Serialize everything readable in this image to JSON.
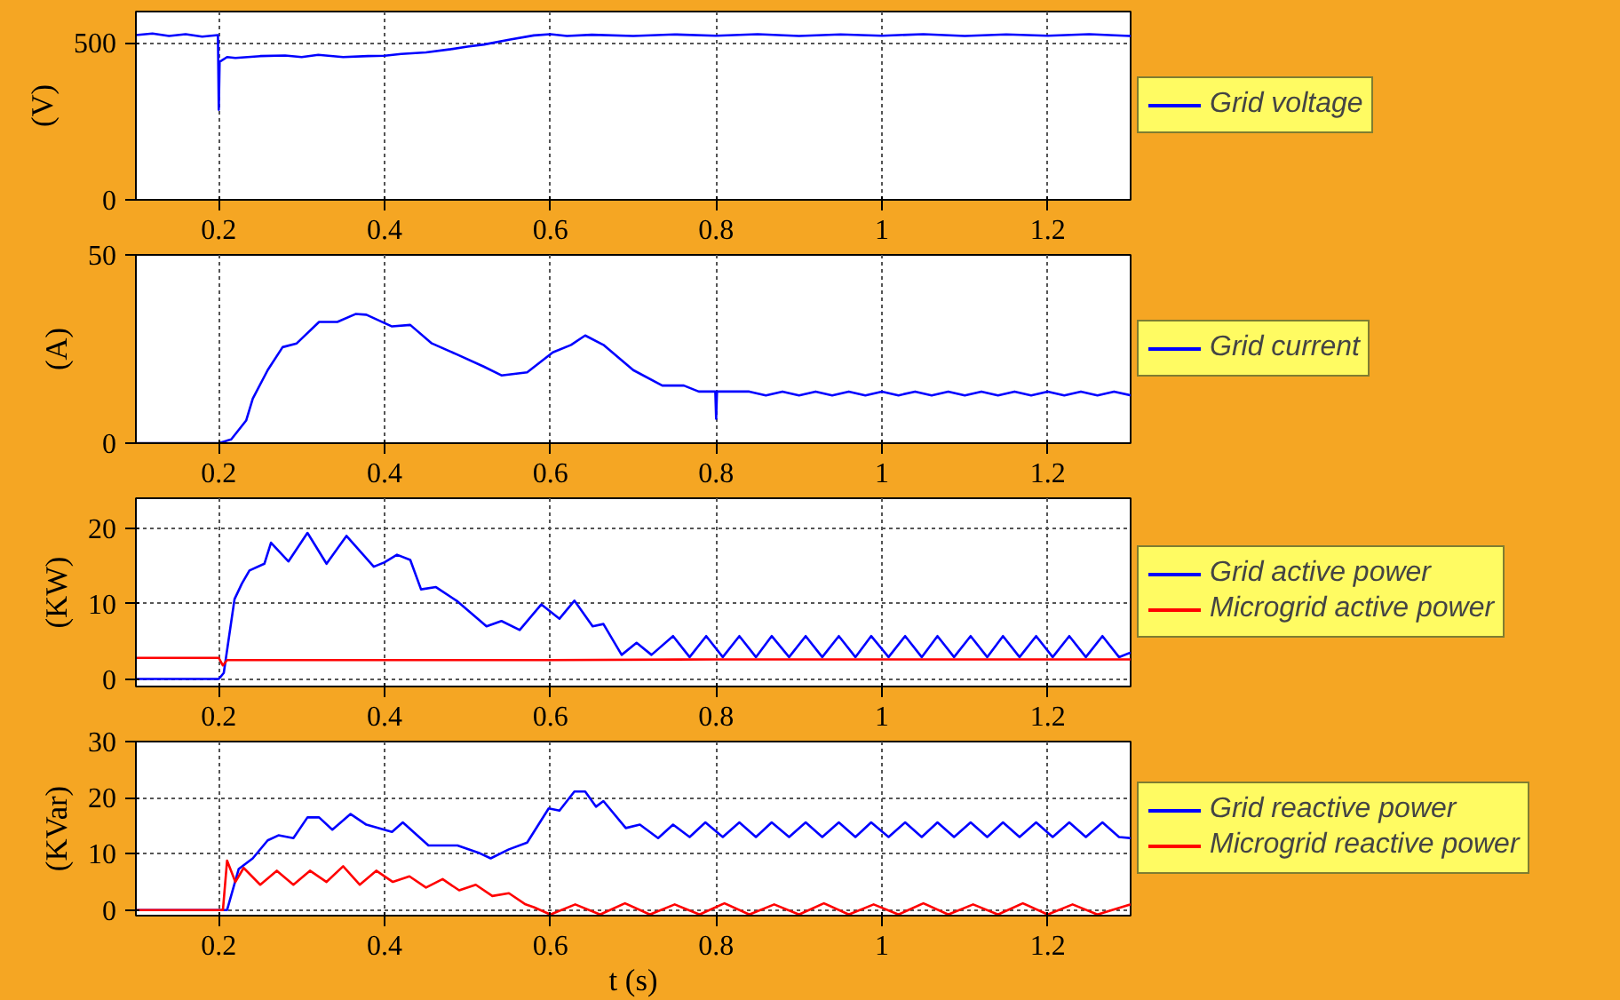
{
  "chart_data": [
    {
      "type": "line",
      "ylabel": "(V)",
      "xlim": [
        0.1,
        1.3
      ],
      "xticks": [
        0.2,
        0.4,
        0.6,
        0.8,
        1,
        1.2
      ],
      "ylim": [
        0,
        600
      ],
      "yticks": [
        0,
        500
      ],
      "grid": true,
      "legend": "right",
      "series": [
        {
          "name": "Grid voltage",
          "color": "#0000ff",
          "x": [
            0.1,
            0.12,
            0.14,
            0.16,
            0.18,
            0.199,
            0.2,
            0.201,
            0.21,
            0.22,
            0.25,
            0.28,
            0.3,
            0.32,
            0.35,
            0.38,
            0.4,
            0.42,
            0.45,
            0.48,
            0.5,
            0.52,
            0.55,
            0.58,
            0.6,
            0.62,
            0.65,
            0.7,
            0.75,
            0.8,
            0.85,
            0.9,
            0.95,
            1.0,
            1.05,
            1.1,
            1.15,
            1.2,
            1.25,
            1.3
          ],
          "values": [
            525,
            530,
            522,
            528,
            520,
            525,
            287,
            440,
            455,
            452,
            458,
            460,
            455,
            462,
            455,
            458,
            459,
            465,
            470,
            480,
            488,
            495,
            510,
            524,
            528,
            522,
            526,
            522,
            527,
            523,
            528,
            522,
            527,
            523,
            528,
            522,
            527,
            523,
            528,
            522
          ]
        }
      ]
    },
    {
      "type": "line",
      "ylabel": "(A)",
      "xlim": [
        0.1,
        1.3
      ],
      "xticks": [
        0.2,
        0.4,
        0.6,
        0.8,
        1,
        1.2
      ],
      "ylim": [
        0,
        50
      ],
      "yticks": [
        0,
        50
      ],
      "grid": true,
      "legend": "right",
      "series": [
        {
          "name": "Grid current",
          "color": "#0000ff",
          "x": [
            0.1,
            0.2,
            0.215,
            0.233,
            0.241,
            0.259,
            0.277,
            0.294,
            0.321,
            0.343,
            0.365,
            0.378,
            0.409,
            0.431,
            0.457,
            0.488,
            0.519,
            0.541,
            0.572,
            0.603,
            0.625,
            0.642,
            0.664,
            0.7,
            0.735,
            0.761,
            0.779,
            0.799,
            0.8,
            0.801,
            0.84,
            0.86,
            0.88,
            0.9,
            0.92,
            0.94,
            0.96,
            0.98,
            1.0,
            1.02,
            1.04,
            1.06,
            1.08,
            1.1,
            1.12,
            1.14,
            1.16,
            1.18,
            1.2,
            1.22,
            1.24,
            1.26,
            1.28,
            1.3
          ],
          "values": [
            0,
            0,
            1,
            6,
            11.8,
            19.4,
            25.5,
            26.5,
            32.2,
            32.2,
            34.3,
            34.1,
            31,
            31.4,
            26.5,
            23.5,
            20.4,
            18,
            18.8,
            24.1,
            26.1,
            28.6,
            26.1,
            19.4,
            15.3,
            15.3,
            13.7,
            13.7,
            6.5,
            13.7,
            13.7,
            12.7,
            13.7,
            12.7,
            13.7,
            12.7,
            13.7,
            12.7,
            13.7,
            12.7,
            13.7,
            12.7,
            13.7,
            12.7,
            13.7,
            12.7,
            13.7,
            12.7,
            13.7,
            12.7,
            13.7,
            12.7,
            13.7,
            12.7
          ]
        }
      ]
    },
    {
      "type": "line",
      "ylabel": "(KW)",
      "xlim": [
        0.1,
        1.3
      ],
      "xticks": [
        0.2,
        0.4,
        0.6,
        0.8,
        1,
        1.2
      ],
      "ylim": [
        -1,
        24
      ],
      "yticks": [
        0,
        10,
        20
      ],
      "grid": true,
      "legend": "right",
      "series": [
        {
          "name": "Grid active power",
          "color": "#0000ff",
          "x": [
            0.1,
            0.2,
            0.206,
            0.219,
            0.228,
            0.237,
            0.255,
            0.263,
            0.284,
            0.307,
            0.33,
            0.354,
            0.387,
            0.4,
            0.415,
            0.431,
            0.444,
            0.462,
            0.488,
            0.523,
            0.541,
            0.563,
            0.589,
            0.611,
            0.629,
            0.651,
            0.664,
            0.686,
            0.704,
            0.722,
            0.748,
            0.768,
            0.788,
            0.808,
            0.828,
            0.848,
            0.867,
            0.888,
            0.908,
            0.928,
            0.948,
            0.968,
            0.987,
            1.008,
            1.028,
            1.048,
            1.067,
            1.087,
            1.107,
            1.127,
            1.146,
            1.166,
            1.186,
            1.206,
            1.226,
            1.246,
            1.266,
            1.286,
            1.3
          ],
          "values": [
            0,
            0,
            0.8,
            10.6,
            12.7,
            14.4,
            15.3,
            18.1,
            15.6,
            19.4,
            15.3,
            19,
            14.9,
            15.5,
            16.5,
            15.8,
            11.9,
            12.2,
            10.3,
            7,
            7.7,
            6.5,
            9.9,
            8,
            10.4,
            7,
            7.3,
            3.2,
            4.8,
            3.2,
            5.7,
            2.9,
            5.7,
            2.9,
            5.7,
            2.9,
            5.7,
            2.9,
            5.7,
            2.9,
            5.7,
            2.9,
            5.7,
            2.9,
            5.7,
            2.9,
            5.7,
            2.9,
            5.7,
            2.9,
            5.7,
            2.9,
            5.7,
            2.9,
            5.7,
            2.9,
            5.7,
            2.9,
            3.5
          ]
        },
        {
          "name": "Microgrid active power",
          "color": "#ff0000",
          "x": [
            0.1,
            0.15,
            0.2,
            0.205,
            0.21,
            0.3,
            0.4,
            0.6,
            0.8,
            1.0,
            1.2,
            1.3
          ],
          "values": [
            2.8,
            2.8,
            2.8,
            1.8,
            2.5,
            2.5,
            2.5,
            2.5,
            2.6,
            2.6,
            2.6,
            2.6
          ]
        }
      ]
    },
    {
      "type": "line",
      "ylabel": "(KVar)",
      "xlabel": "t (s)",
      "xlim": [
        0.1,
        1.3
      ],
      "xticks": [
        0.2,
        0.4,
        0.6,
        0.8,
        1,
        1.2
      ],
      "ylim": [
        -1,
        30
      ],
      "yticks": [
        0,
        10,
        20,
        30
      ],
      "grid": true,
      "legend": "right",
      "series": [
        {
          "name": "Grid reactive power",
          "color": "#0000ff",
          "x": [
            0.1,
            0.21,
            0.224,
            0.241,
            0.259,
            0.272,
            0.29,
            0.307,
            0.321,
            0.337,
            0.359,
            0.378,
            0.409,
            0.422,
            0.453,
            0.488,
            0.515,
            0.528,
            0.55,
            0.572,
            0.598,
            0.611,
            0.629,
            0.642,
            0.655,
            0.664,
            0.691,
            0.708,
            0.73,
            0.748,
            0.768,
            0.787,
            0.808,
            0.828,
            0.848,
            0.867,
            0.888,
            0.908,
            0.928,
            0.948,
            0.968,
            0.987,
            1.008,
            1.028,
            1.048,
            1.067,
            1.087,
            1.107,
            1.127,
            1.146,
            1.166,
            1.186,
            1.206,
            1.226,
            1.246,
            1.266,
            1.286,
            1.3
          ],
          "values": [
            0,
            0,
            7.3,
            9.2,
            12.4,
            13.3,
            12.8,
            16.5,
            16.5,
            14.3,
            17.1,
            15.2,
            13.9,
            15.6,
            11.5,
            11.5,
            10.1,
            9.2,
            10.8,
            12,
            18.1,
            17.7,
            21.1,
            21.1,
            18.4,
            19.4,
            14.6,
            15.2,
            12.8,
            15.2,
            13,
            15.6,
            13,
            15.6,
            13,
            15.6,
            13,
            15.6,
            13,
            15.6,
            13,
            15.6,
            13,
            15.6,
            13,
            15.6,
            13,
            15.6,
            13,
            15.6,
            13,
            15.6,
            13,
            15.6,
            13,
            15.6,
            13,
            12.8
          ]
        },
        {
          "name": "Microgrid reactive power",
          "color": "#ff0000",
          "x": [
            0.1,
            0.205,
            0.21,
            0.22,
            0.23,
            0.25,
            0.27,
            0.29,
            0.31,
            0.33,
            0.35,
            0.37,
            0.39,
            0.41,
            0.43,
            0.45,
            0.47,
            0.49,
            0.51,
            0.53,
            0.55,
            0.57,
            0.58,
            0.6,
            0.63,
            0.66,
            0.69,
            0.72,
            0.75,
            0.78,
            0.81,
            0.84,
            0.87,
            0.9,
            0.93,
            0.96,
            0.99,
            1.02,
            1.05,
            1.08,
            1.11,
            1.14,
            1.17,
            1.2,
            1.23,
            1.26,
            1.3
          ],
          "values": [
            0,
            0,
            8.8,
            5,
            7.5,
            4.5,
            7,
            4.5,
            7,
            5,
            7.8,
            4.5,
            7,
            5,
            6,
            4,
            5.5,
            3.5,
            4.5,
            2.5,
            3,
            1,
            0.5,
            -0.8,
            1,
            -0.8,
            1.2,
            -0.8,
            1,
            -0.8,
            1.2,
            -0.8,
            1,
            -0.8,
            1.2,
            -0.8,
            1,
            -0.8,
            1.2,
            -0.8,
            1,
            -0.8,
            1.2,
            -0.8,
            1,
            -0.8,
            1
          ]
        }
      ]
    }
  ]
}
